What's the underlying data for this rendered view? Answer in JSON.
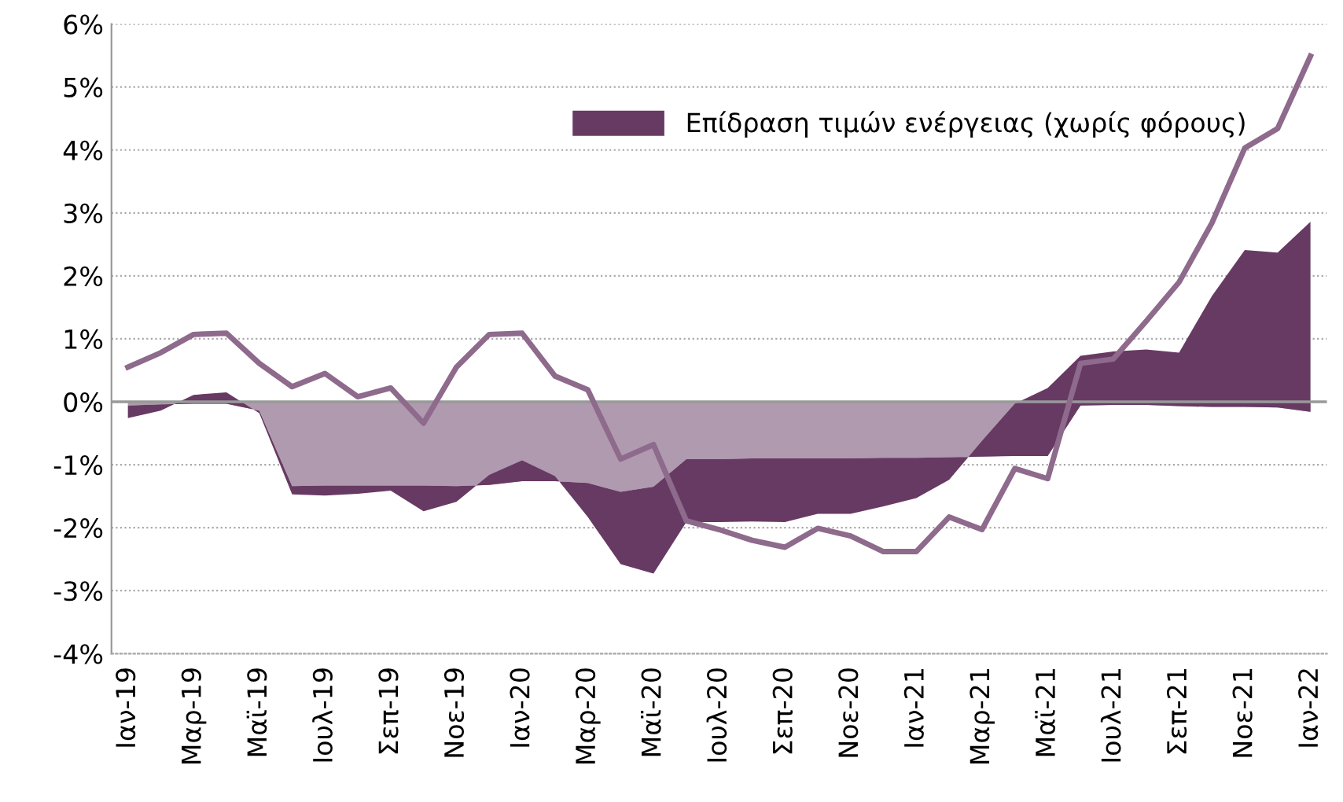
{
  "chart_data": {
    "type": "area",
    "stacked": true,
    "categories": [
      "Ιαν-19",
      null,
      "Μαρ-19",
      null,
      "Μαϊ-19",
      null,
      "Ιουλ-19",
      null,
      "Σεπ-19",
      null,
      "Νοε-19",
      null,
      "Ιαν-20",
      null,
      "Μαρ-20",
      null,
      "Μαϊ-20",
      null,
      "Ιουλ-20",
      null,
      "Σεπ-20",
      null,
      "Νοε-20",
      null,
      "Ιαν-21",
      null,
      "Μαρ-21",
      null,
      "Μαϊ-21",
      null,
      "Ιουλ-21",
      null,
      "Σεπ-21",
      null,
      "Νοε-21",
      null,
      "Ιαν-22"
    ],
    "series": [
      {
        "color": "#b09aaf",
        "values": [
          -0.06,
          -0.04,
          -0.03,
          -0.03,
          -0.14,
          -1.34,
          -1.33,
          -1.33,
          -1.33,
          -1.33,
          -1.34,
          -1.32,
          -1.26,
          -1.26,
          -1.29,
          -1.43,
          -1.35,
          -0.91,
          -0.91,
          -0.9,
          -0.9,
          -0.9,
          -0.9,
          -0.89,
          -0.89,
          -0.88,
          -0.87,
          -0.86,
          -0.86,
          -0.06,
          -0.05,
          -0.05,
          -0.07,
          -0.08,
          -0.08,
          -0.09,
          -0.16
        ]
      },
      {
        "name": "Επίδραση τιμών ενέργειας (χωρίς φόρους)",
        "color": "#673a63",
        "values": [
          -0.2,
          -0.1,
          0.14,
          0.18,
          -0.04,
          -0.13,
          -0.16,
          -0.13,
          -0.08,
          -0.41,
          -0.25,
          0.16,
          0.33,
          0.08,
          -0.54,
          -1.15,
          -1.38,
          -1.0,
          -1.0,
          -1.0,
          -1.01,
          -0.88,
          -0.88,
          -0.77,
          -0.64,
          -0.36,
          0.25,
          0.83,
          1.08,
          0.79,
          0.85,
          0.88,
          0.85,
          1.76,
          2.49,
          2.46,
          3.02
        ]
      },
      {
        "type": "line",
        "color": "#8e6a8c",
        "values": [
          0.55,
          0.78,
          1.07,
          1.09,
          0.61,
          0.24,
          0.45,
          0.08,
          0.22,
          -0.34,
          0.55,
          1.07,
          1.09,
          0.41,
          0.19,
          -0.91,
          -0.68,
          -1.89,
          -2.03,
          -2.2,
          -2.31,
          -2.01,
          -2.13,
          -2.38,
          -2.38,
          -1.83,
          -2.03,
          -1.06,
          -1.22,
          0.61,
          0.68,
          1.28,
          1.9,
          2.84,
          4.03,
          4.34,
          5.49
        ]
      }
    ],
    "ylim": [
      -4,
      6
    ],
    "yticks": [
      {
        "value": -4,
        "label": "-4%"
      },
      {
        "value": -3,
        "label": "-3%"
      },
      {
        "value": -2,
        "label": "-2%"
      },
      {
        "value": -1,
        "label": "-1%"
      },
      {
        "value": 0,
        "label": "0%"
      },
      {
        "value": 1,
        "label": "1%"
      },
      {
        "value": 2,
        "label": "2%"
      },
      {
        "value": 3,
        "label": "3%"
      },
      {
        "value": 4,
        "label": "4%"
      },
      {
        "value": 5,
        "label": "5%"
      },
      {
        "value": 6,
        "label": "6%"
      }
    ],
    "ref_lines": [
      {
        "axis": "y",
        "value": 0,
        "color": "#999999"
      }
    ],
    "grid": "y",
    "legend": "top",
    "marker": "none",
    "line_style": "solid"
  }
}
